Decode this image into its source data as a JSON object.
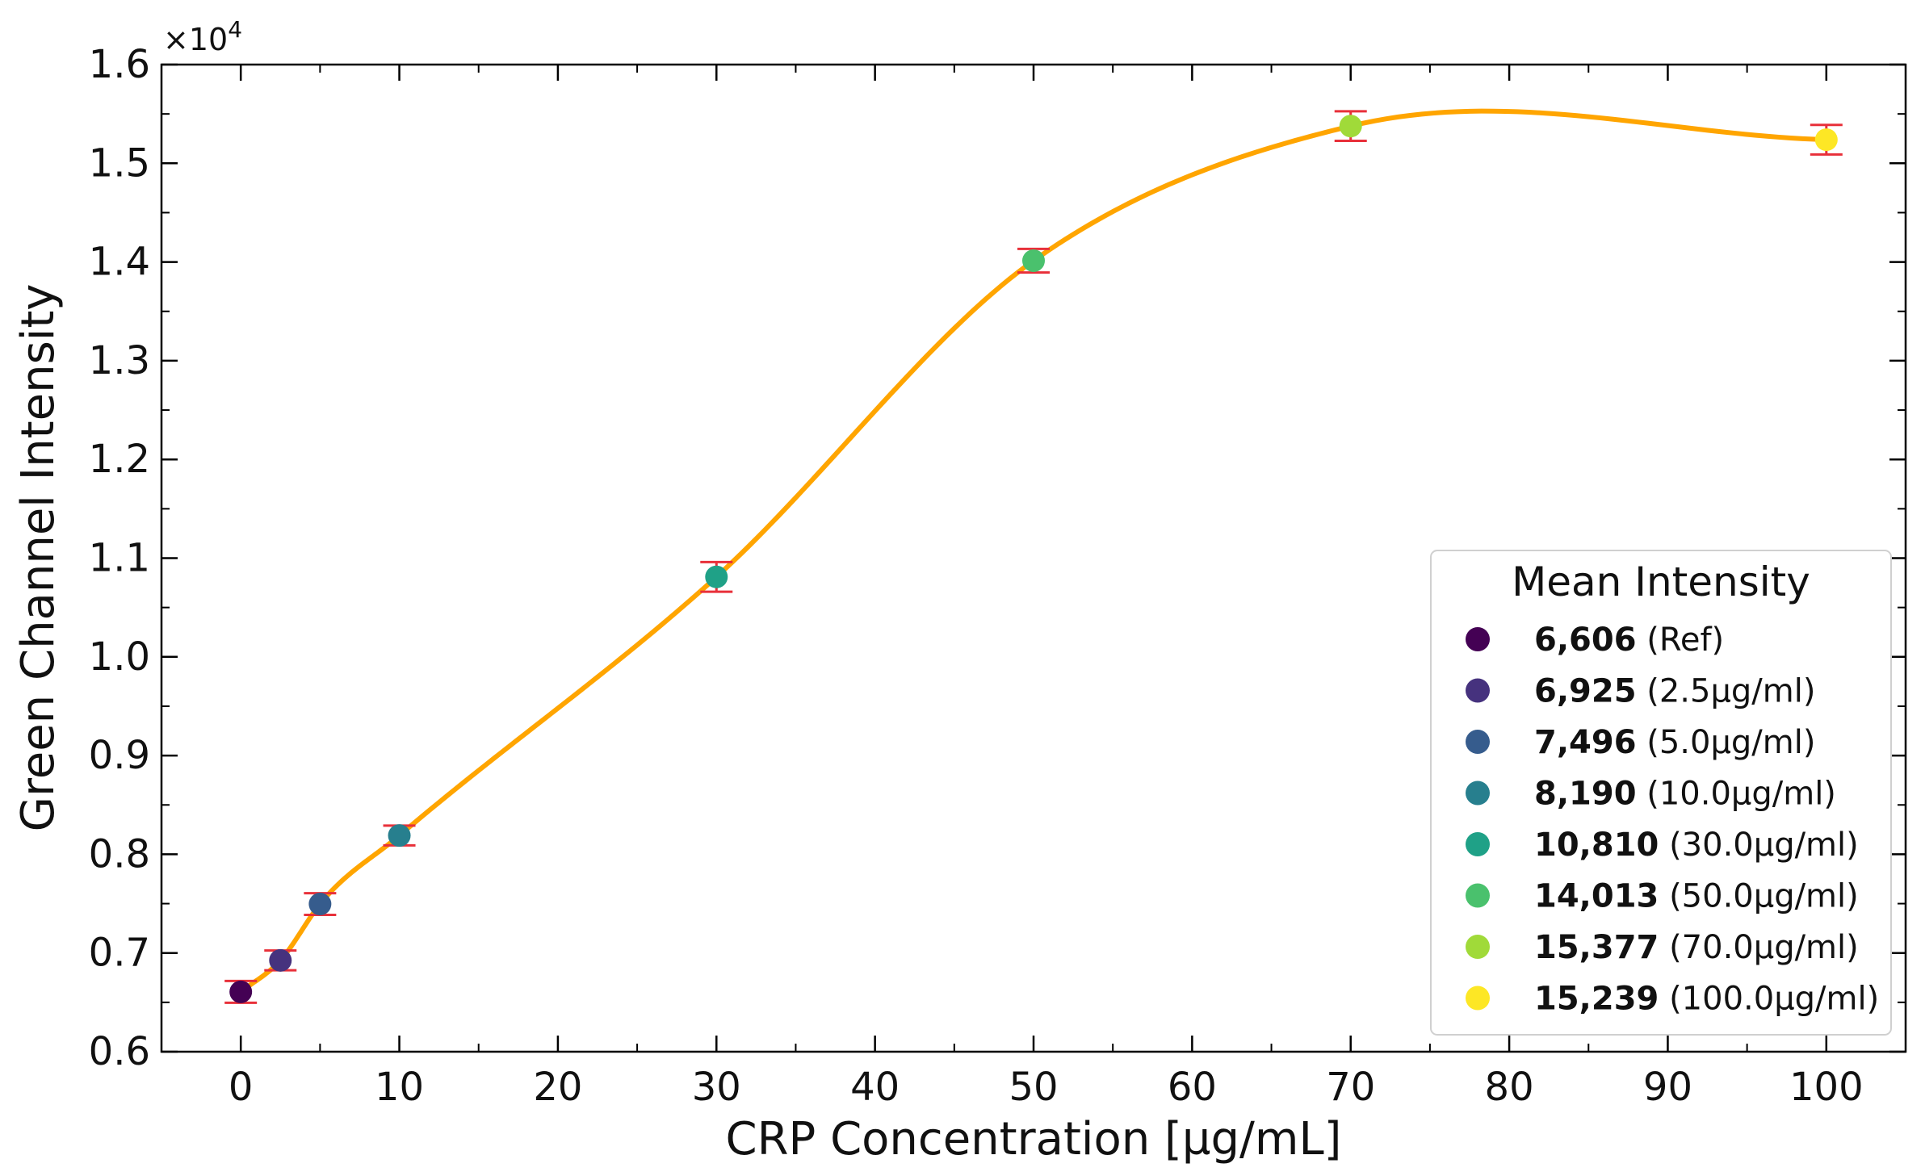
{
  "chart_data": {
    "type": "scatter",
    "xlabel": "CRP Concentration [µg/mL]",
    "ylabel": "Green Channel Intensity",
    "y_exponent_label": "×10",
    "y_exponent_power": "4",
    "xlim": [
      -5,
      105
    ],
    "ylim": [
      6000,
      16000
    ],
    "x_ticks": [
      0,
      10,
      20,
      30,
      40,
      50,
      60,
      70,
      80,
      90,
      100
    ],
    "x_tick_labels": [
      "0",
      "10",
      "20",
      "30",
      "40",
      "50",
      "60",
      "70",
      "80",
      "90",
      "100"
    ],
    "y_ticks": [
      6000,
      7000,
      8000,
      9000,
      10000,
      11000,
      12000,
      13000,
      14000,
      15000,
      16000
    ],
    "y_tick_labels": [
      "0.6",
      "0.7",
      "0.8",
      "0.9",
      "1.0",
      "1.1",
      "1.2",
      "1.3",
      "1.4",
      "1.5",
      "1.6"
    ],
    "grid": false,
    "fit_curve_color": "#FFA500",
    "error_bar_color": "#E8303A",
    "points": [
      {
        "x": 0,
        "y": 6606,
        "err": 110,
        "color": "#440154"
      },
      {
        "x": 2.5,
        "y": 6925,
        "err": 100,
        "color": "#46327E"
      },
      {
        "x": 5,
        "y": 7496,
        "err": 110,
        "color": "#365C8D"
      },
      {
        "x": 10,
        "y": 8190,
        "err": 100,
        "color": "#277F8E"
      },
      {
        "x": 30,
        "y": 10810,
        "err": 150,
        "color": "#1FA187"
      },
      {
        "x": 50,
        "y": 14013,
        "err": 120,
        "color": "#4AC16D"
      },
      {
        "x": 70,
        "y": 15377,
        "err": 150,
        "color": "#A0DA39"
      },
      {
        "x": 100,
        "y": 15239,
        "err": 150,
        "color": "#FDE725"
      }
    ],
    "legend": {
      "title": "Mean Intensity",
      "position": "lower-right",
      "entries": [
        {
          "value": "6,606",
          "label": "(Ref)"
        },
        {
          "value": "6,925",
          "label": "(2.5µg/ml)"
        },
        {
          "value": "7,496",
          "label": "(5.0µg/ml)"
        },
        {
          "value": "8,190",
          "label": "(10.0µg/ml)"
        },
        {
          "value": "10,810",
          "label": "(30.0µg/ml)"
        },
        {
          "value": "14,013",
          "label": "(50.0µg/ml)"
        },
        {
          "value": "15,377",
          "label": "(70.0µg/ml)"
        },
        {
          "value": "15,239",
          "label": "(100.0µg/ml)"
        }
      ]
    }
  }
}
